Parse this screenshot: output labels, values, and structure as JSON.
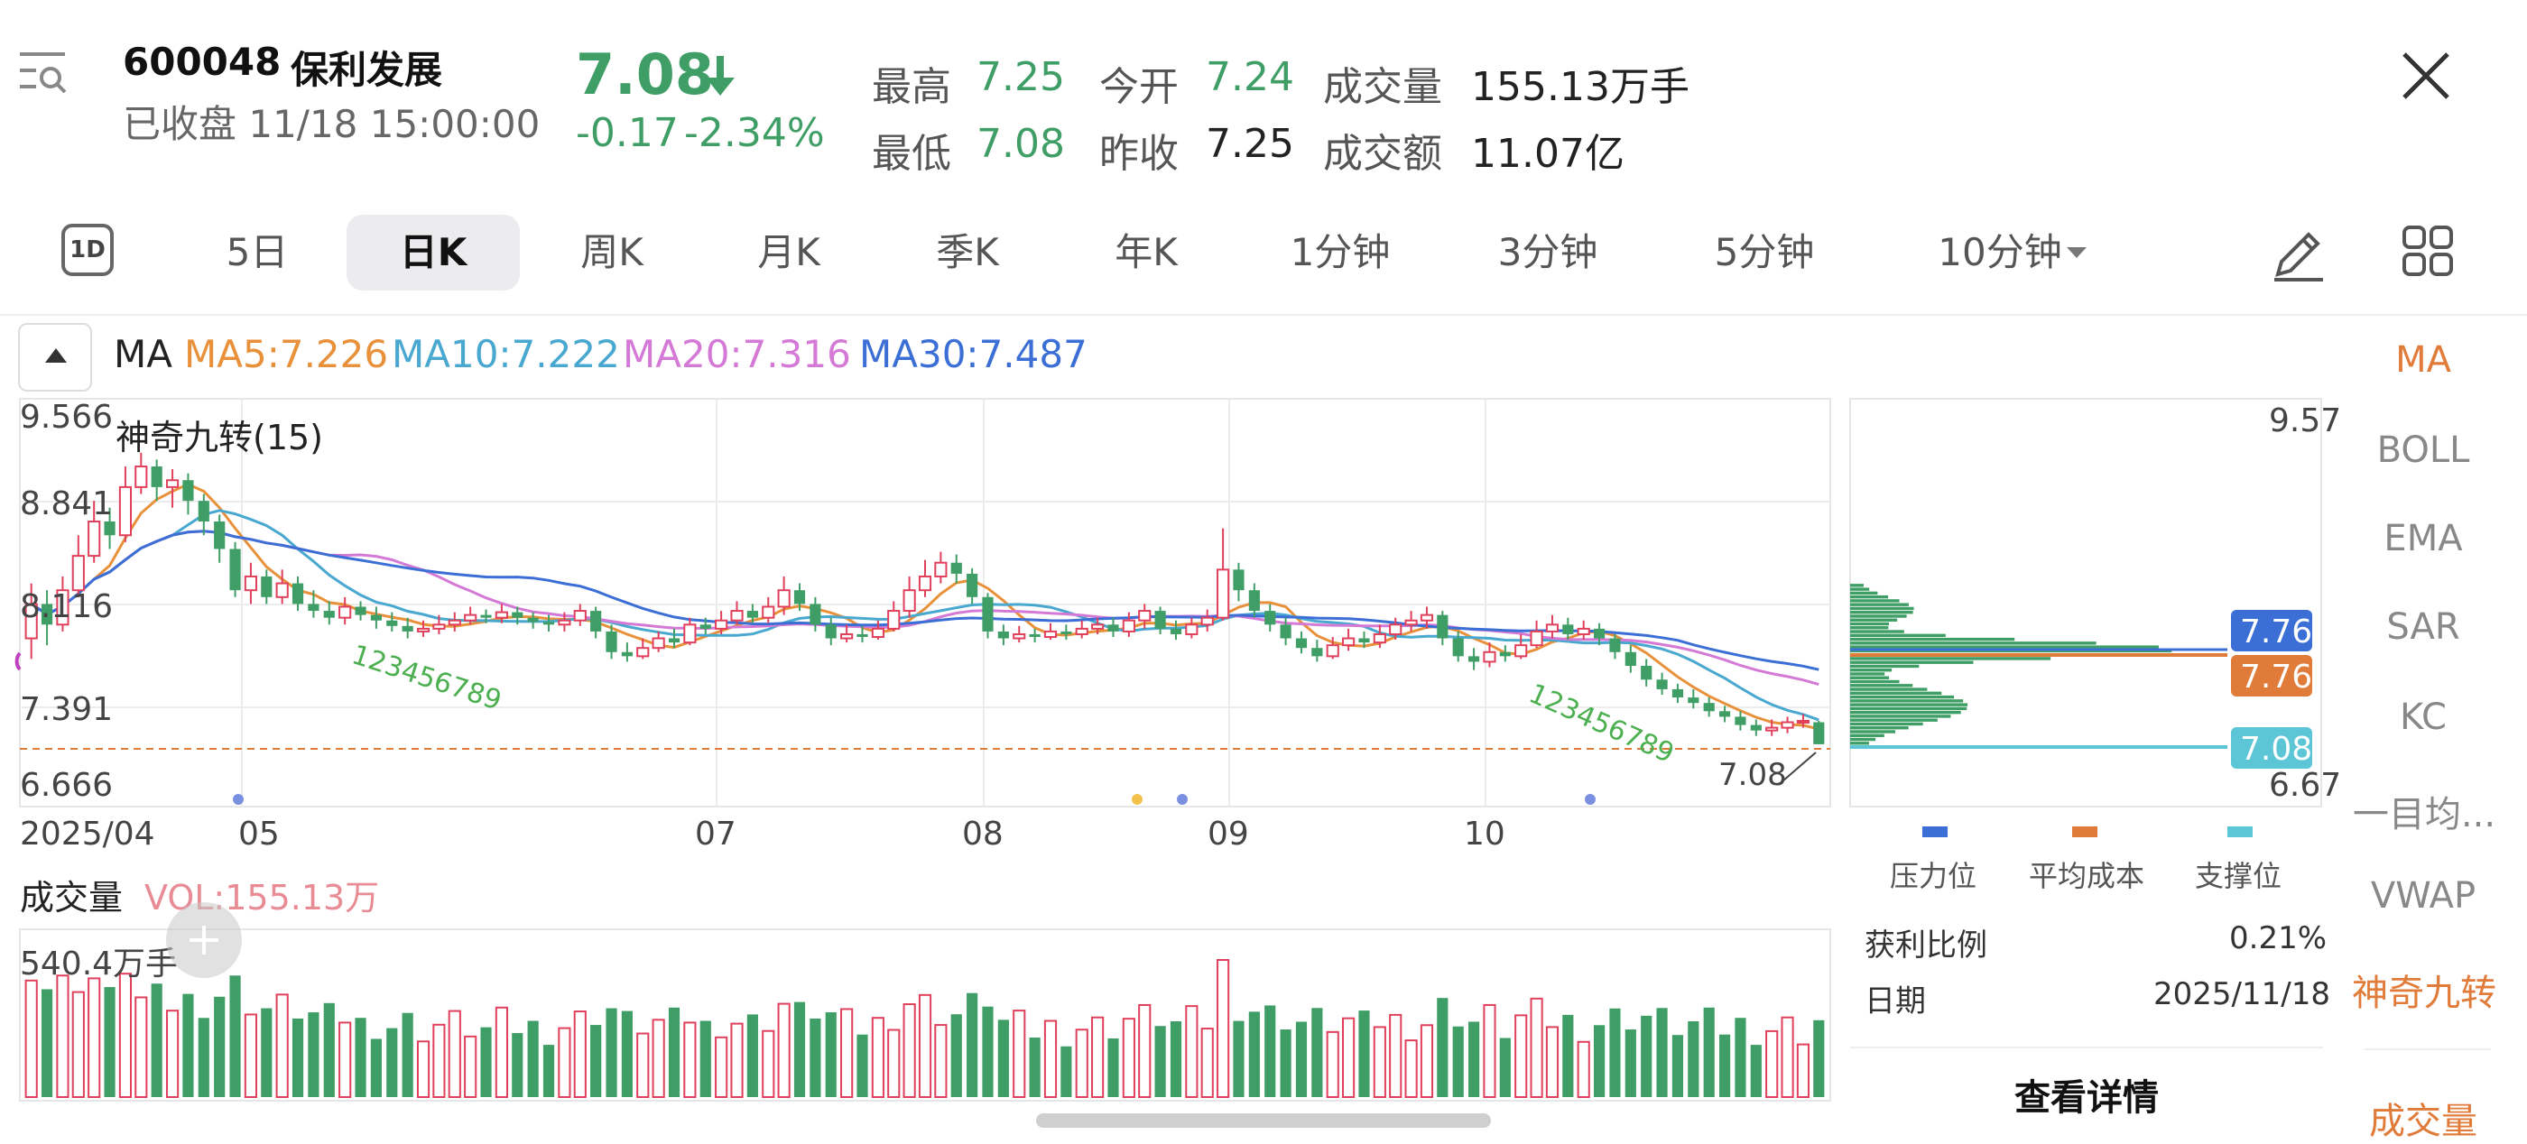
{
  "stock": {
    "code": "600048",
    "name": "保利发展",
    "status": "已收盘 11/18 15:00:00",
    "price": "7.08",
    "change": "-0.17",
    "change_pct": "-2.34%",
    "stats": [
      {
        "label": "最高",
        "value": "7.25",
        "color": "#3f9e66"
      },
      {
        "label": "最低",
        "value": "7.08",
        "color": "#3f9e66"
      },
      {
        "label": "今开",
        "value": "7.24",
        "color": "#3f9e66"
      },
      {
        "label": "昨收",
        "value": "7.25",
        "color": "#222222"
      },
      {
        "label": "成交量",
        "value": "155.13万手",
        "color": "#222222"
      },
      {
        "label": "成交额",
        "value": "11.07亿",
        "color": "#222222"
      }
    ]
  },
  "tabs": {
    "icon_1d": "1D",
    "items": [
      "5日",
      "日K",
      "周K",
      "月K",
      "季K",
      "年K",
      "1分钟",
      "3分钟",
      "5分钟",
      "10分钟"
    ],
    "active": "日K"
  },
  "ma_legend": {
    "title": "MA",
    "ma5": "MA5:7.226",
    "ma10": "MA10:7.222",
    "ma20": "MA20:7.316",
    "ma30": "MA30:7.487",
    "colors": {
      "ma5": "#e8913a",
      "ma10": "#49a8d0",
      "ma20": "#d47ad6",
      "ma30": "#3b6fd6"
    }
  },
  "main_chart": {
    "nine_turn_label": "神奇九转(15)",
    "y_labels": [
      "9.566",
      "8.841",
      "8.116",
      "7.391",
      "6.666"
    ],
    "x_labels": [
      "2025/04",
      "05",
      "07",
      "08",
      "09",
      "10"
    ],
    "last_price_label": "7.08",
    "nine_turn_sequence": "123456789"
  },
  "volume_chart": {
    "title": "成交量",
    "vol_label": "VOL:155.13万",
    "max_label": "540.4万手"
  },
  "chip_panel": {
    "top_price": "9.57",
    "bottom_price": "6.67",
    "pressure_price": "7.76",
    "avg_cost_price": "7.76",
    "support_price": "7.08",
    "legend": [
      {
        "label": "压力位",
        "color": "#3b6fd6"
      },
      {
        "label": "平均成本",
        "color": "#e07b39"
      },
      {
        "label": "支撑位",
        "color": "#5cc6d6"
      }
    ],
    "profit_label": "获利比例",
    "profit_value": "0.21%",
    "date_label": "日期",
    "date_value": "2025/11/18",
    "detail_button": "查看详情"
  },
  "indicators": [
    "MA",
    "BOLL",
    "EMA",
    "SAR",
    "KC",
    "一目均...",
    "VWAP",
    "神奇九转",
    "成交量"
  ],
  "chart_data": {
    "type": "candlestick",
    "title": "",
    "ylim": [
      6.666,
      9.566
    ],
    "candles_approx": [
      [
        7.85,
        8.1,
        8.25,
        7.7
      ],
      [
        8.1,
        7.95,
        8.2,
        7.8
      ],
      [
        7.95,
        8.2,
        8.3,
        7.9
      ],
      [
        8.2,
        8.45,
        8.6,
        8.15
      ],
      [
        8.45,
        8.7,
        8.85,
        8.4
      ],
      [
        8.7,
        8.6,
        8.8,
        8.5
      ],
      [
        8.6,
        8.95,
        9.1,
        8.55
      ],
      [
        8.95,
        9.1,
        9.2,
        8.9
      ],
      [
        9.1,
        8.95,
        9.15,
        8.85
      ],
      [
        8.95,
        9.0,
        9.08,
        8.8
      ],
      [
        9.0,
        8.85,
        9.05,
        8.75
      ],
      [
        8.85,
        8.7,
        8.9,
        8.6
      ],
      [
        8.7,
        8.5,
        8.75,
        8.4
      ],
      [
        8.5,
        8.2,
        8.55,
        8.15
      ],
      [
        8.2,
        8.3,
        8.4,
        8.1
      ],
      [
        8.3,
        8.15,
        8.35,
        8.1
      ],
      [
        8.15,
        8.25,
        8.35,
        8.1
      ],
      [
        8.25,
        8.1,
        8.3,
        8.05
      ],
      [
        8.1,
        8.05,
        8.2,
        8.0
      ],
      [
        8.05,
        8.0,
        8.12,
        7.95
      ],
      [
        8.0,
        8.08,
        8.15,
        7.95
      ],
      [
        8.08,
        8.02,
        8.12,
        7.98
      ],
      [
        8.02,
        7.98,
        8.08,
        7.92
      ],
      [
        7.98,
        7.94,
        8.04,
        7.9
      ],
      [
        7.94,
        7.9,
        8.0,
        7.85
      ],
      [
        7.9,
        7.92,
        7.98,
        7.86
      ],
      [
        7.92,
        7.95,
        8.02,
        7.88
      ],
      [
        7.95,
        7.98,
        8.04,
        7.9
      ],
      [
        7.98,
        8.02,
        8.08,
        7.95
      ],
      [
        8.02,
        8.0,
        8.06,
        7.96
      ],
      [
        8.0,
        8.04,
        8.1,
        7.96
      ],
      [
        8.04,
        8.0,
        8.08,
        7.95
      ],
      [
        8.0,
        7.97,
        8.04,
        7.92
      ],
      [
        7.97,
        7.95,
        8.02,
        7.9
      ],
      [
        7.95,
        7.98,
        8.04,
        7.9
      ],
      [
        7.98,
        8.05,
        8.1,
        7.94
      ],
      [
        8.05,
        7.9,
        8.08,
        7.85
      ],
      [
        7.9,
        7.75,
        7.95,
        7.7
      ],
      [
        7.75,
        7.72,
        7.82,
        7.68
      ],
      [
        7.72,
        7.78,
        7.85,
        7.7
      ],
      [
        7.78,
        7.85,
        7.9,
        7.75
      ],
      [
        7.85,
        7.82,
        7.92,
        7.78
      ],
      [
        7.82,
        7.95,
        8.0,
        7.8
      ],
      [
        7.95,
        7.92,
        8.0,
        7.88
      ],
      [
        7.92,
        7.98,
        8.05,
        7.88
      ],
      [
        7.98,
        8.05,
        8.12,
        7.95
      ],
      [
        8.05,
        8.0,
        8.1,
        7.96
      ],
      [
        8.0,
        8.08,
        8.15,
        7.96
      ],
      [
        8.08,
        8.2,
        8.3,
        8.02
      ],
      [
        8.2,
        8.1,
        8.25,
        8.05
      ],
      [
        8.1,
        7.95,
        8.15,
        7.9
      ],
      [
        7.95,
        7.85,
        8.0,
        7.8
      ],
      [
        7.85,
        7.88,
        7.95,
        7.82
      ],
      [
        7.88,
        7.86,
        7.94,
        7.82
      ],
      [
        7.86,
        7.92,
        7.98,
        7.84
      ],
      [
        7.92,
        8.05,
        8.12,
        7.9
      ],
      [
        8.05,
        8.2,
        8.3,
        8.0
      ],
      [
        8.2,
        8.3,
        8.42,
        8.15
      ],
      [
        8.3,
        8.4,
        8.48,
        8.25
      ],
      [
        8.4,
        8.32,
        8.46,
        8.25
      ],
      [
        8.32,
        8.15,
        8.36,
        8.1
      ],
      [
        8.15,
        7.9,
        8.18,
        7.85
      ],
      [
        7.9,
        7.85,
        7.95,
        7.8
      ],
      [
        7.85,
        7.88,
        7.94,
        7.82
      ],
      [
        7.88,
        7.86,
        7.92,
        7.82
      ],
      [
        7.86,
        7.9,
        7.96,
        7.84
      ],
      [
        7.9,
        7.88,
        7.95,
        7.84
      ],
      [
        7.88,
        7.92,
        7.98,
        7.85
      ],
      [
        7.92,
        7.95,
        8.0,
        7.88
      ],
      [
        7.95,
        7.9,
        8.0,
        7.86
      ],
      [
        7.9,
        7.98,
        8.04,
        7.86
      ],
      [
        7.98,
        8.05,
        8.1,
        7.92
      ],
      [
        8.05,
        7.92,
        8.08,
        7.88
      ],
      [
        7.92,
        7.88,
        7.98,
        7.84
      ],
      [
        7.88,
        7.95,
        8.0,
        7.85
      ],
      [
        7.95,
        8.0,
        8.06,
        7.9
      ],
      [
        8.0,
        8.35,
        8.65,
        7.98
      ],
      [
        8.35,
        8.2,
        8.4,
        8.12
      ],
      [
        8.2,
        8.05,
        8.25,
        8.0
      ],
      [
        8.05,
        7.95,
        8.1,
        7.9
      ],
      [
        7.95,
        7.85,
        8.0,
        7.8
      ],
      [
        7.85,
        7.78,
        7.9,
        7.74
      ],
      [
        7.78,
        7.72,
        7.84,
        7.68
      ],
      [
        7.72,
        7.8,
        7.86,
        7.7
      ],
      [
        7.8,
        7.85,
        7.92,
        7.76
      ],
      [
        7.85,
        7.82,
        7.9,
        7.78
      ],
      [
        7.82,
        7.88,
        7.95,
        7.78
      ],
      [
        7.88,
        7.95,
        8.0,
        7.84
      ],
      [
        7.95,
        7.98,
        8.05,
        7.9
      ],
      [
        7.98,
        8.02,
        8.08,
        7.92
      ],
      [
        8.02,
        7.85,
        8.05,
        7.8
      ],
      [
        7.85,
        7.72,
        7.9,
        7.68
      ],
      [
        7.72,
        7.68,
        7.78,
        7.62
      ],
      [
        7.68,
        7.75,
        7.82,
        7.64
      ],
      [
        7.75,
        7.72,
        7.8,
        7.68
      ],
      [
        7.72,
        7.8,
        7.88,
        7.7
      ],
      [
        7.8,
        7.9,
        7.98,
        7.78
      ],
      [
        7.9,
        7.95,
        8.02,
        7.85
      ],
      [
        7.95,
        7.88,
        8.0,
        7.84
      ],
      [
        7.88,
        7.92,
        7.98,
        7.84
      ],
      [
        7.92,
        7.85,
        7.96,
        7.8
      ],
      [
        7.85,
        7.75,
        7.88,
        7.7
      ],
      [
        7.75,
        7.65,
        7.8,
        7.6
      ],
      [
        7.65,
        7.55,
        7.7,
        7.5
      ],
      [
        7.55,
        7.48,
        7.6,
        7.44
      ],
      [
        7.48,
        7.42,
        7.52,
        7.38
      ],
      [
        7.42,
        7.38,
        7.48,
        7.34
      ],
      [
        7.38,
        7.32,
        7.42,
        7.28
      ],
      [
        7.32,
        7.28,
        7.36,
        7.24
      ],
      [
        7.28,
        7.22,
        7.32,
        7.18
      ],
      [
        7.22,
        7.18,
        7.26,
        7.14
      ],
      [
        7.18,
        7.2,
        7.26,
        7.14
      ],
      [
        7.2,
        7.24,
        7.28,
        7.16
      ],
      [
        7.24,
        7.25,
        7.3,
        7.2
      ],
      [
        7.24,
        7.08,
        7.25,
        7.08
      ]
    ],
    "ma_series_approx": {
      "MA5": [
        7.226
      ],
      "MA10": [
        7.222
      ],
      "MA20": [
        7.316
      ],
      "MA30": [
        7.487
      ]
    },
    "chip_distribution": {
      "pressure": 7.76,
      "average_cost": 7.76,
      "support": 7.08,
      "profit_ratio": "0.21%",
      "price_range": [
        6.67,
        9.57
      ]
    }
  }
}
